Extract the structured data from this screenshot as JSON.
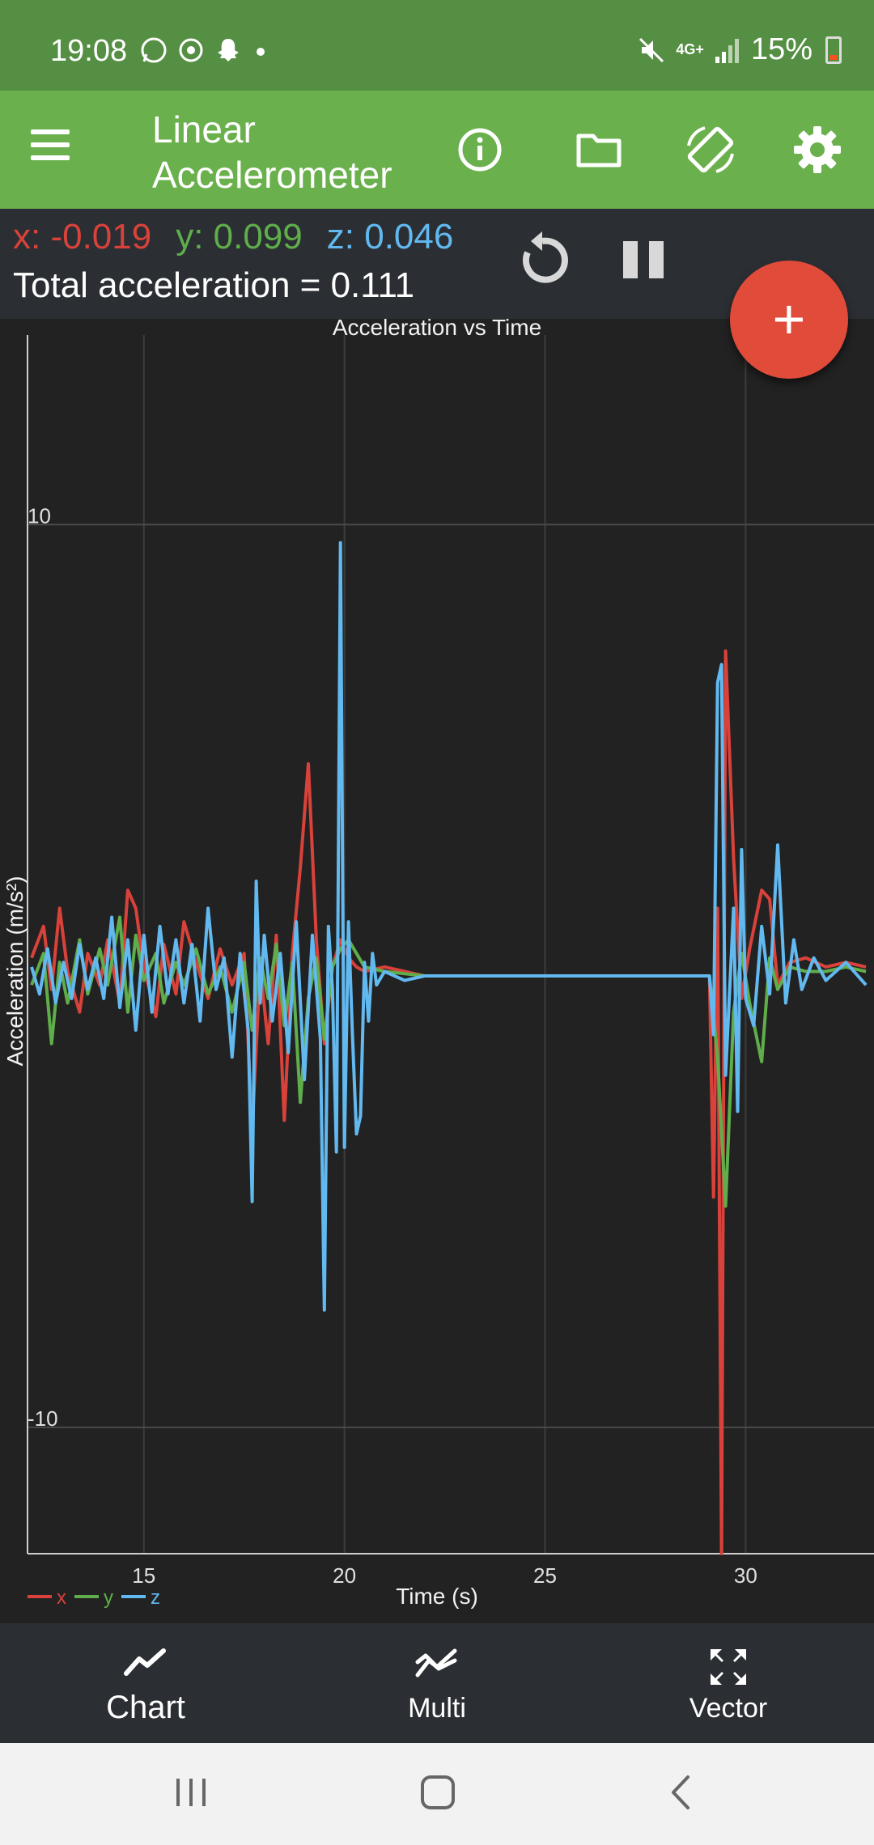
{
  "status_bar": {
    "time": "19:08",
    "battery": "15%",
    "network": "4G+"
  },
  "app_bar": {
    "title": "Linear Accelerometer",
    "icons": [
      "menu-icon",
      "info-icon",
      "folder-icon",
      "screen-rotation-icon",
      "settings-icon"
    ]
  },
  "readout": {
    "x_label": "x: -0.019",
    "y_label": "y: 0.099",
    "z_label": "z: 0.046",
    "total_label": "Total acceleration = 0.111"
  },
  "fab": {
    "label": "+"
  },
  "colors": {
    "x": "#d9423a",
    "y": "#5fae4b",
    "z": "#62b9f0",
    "appbar": "#6ab04c",
    "statusbar": "#558f43"
  },
  "chart_data": {
    "type": "line",
    "title": "Acceleration vs Time",
    "xlabel": "Time (s)",
    "ylabel": "Acceleration (m/s²)",
    "xlim": [
      12.1,
      33.2
    ],
    "ylim": [
      -12.8,
      14.2
    ],
    "xticks": [
      15,
      20,
      25,
      30
    ],
    "yticks": [
      10,
      -10
    ],
    "grid": true,
    "legend": "bottom-left",
    "series": [
      {
        "name": "x",
        "color": "#d9423a",
        "points": [
          [
            12.2,
            0.4
          ],
          [
            12.5,
            1.1
          ],
          [
            12.7,
            -0.3
          ],
          [
            12.9,
            1.5
          ],
          [
            13.1,
            0.1
          ],
          [
            13.4,
            -0.8
          ],
          [
            13.6,
            0.5
          ],
          [
            13.9,
            -0.2
          ],
          [
            14.1,
            0.8
          ],
          [
            14.4,
            -0.6
          ],
          [
            14.6,
            1.9
          ],
          [
            14.8,
            1.5
          ],
          [
            15.0,
            0.2
          ],
          [
            15.3,
            -0.9
          ],
          [
            15.5,
            0.7
          ],
          [
            15.8,
            -0.4
          ],
          [
            16.0,
            1.2
          ],
          [
            16.3,
            0.3
          ],
          [
            16.6,
            -0.5
          ],
          [
            16.9,
            0.6
          ],
          [
            17.2,
            -0.2
          ],
          [
            17.5,
            0.5
          ],
          [
            17.7,
            -3.4
          ],
          [
            17.9,
            0.2
          ],
          [
            18.1,
            -1.5
          ],
          [
            18.3,
            0.9
          ],
          [
            18.5,
            -3.2
          ],
          [
            18.7,
            0.5
          ],
          [
            18.9,
            2.4
          ],
          [
            19.1,
            4.7
          ],
          [
            19.3,
            0.8
          ],
          [
            19.5,
            -1.5
          ],
          [
            19.7,
            0.2
          ],
          [
            19.9,
            0.8
          ],
          [
            20.1,
            0.4
          ],
          [
            20.3,
            0.2
          ],
          [
            20.5,
            0.1
          ],
          [
            21.0,
            0.2
          ],
          [
            21.5,
            0.1
          ],
          [
            22,
            0
          ],
          [
            25,
            0
          ],
          [
            28,
            0
          ],
          [
            29.1,
            0
          ],
          [
            29.2,
            -4.9
          ],
          [
            29.3,
            1.5
          ],
          [
            29.4,
            -12.8
          ],
          [
            29.5,
            7.2
          ],
          [
            29.7,
            2.6
          ],
          [
            29.9,
            -0.5
          ],
          [
            30.1,
            0.6
          ],
          [
            30.4,
            1.9
          ],
          [
            30.6,
            1.7
          ],
          [
            30.8,
            -0.2
          ],
          [
            31.1,
            0.3
          ],
          [
            31.5,
            0.4
          ],
          [
            32.0,
            0.2
          ],
          [
            32.5,
            0.3
          ],
          [
            33.0,
            0.2
          ]
        ]
      },
      {
        "name": "y",
        "color": "#5fae4b",
        "points": [
          [
            12.2,
            -0.2
          ],
          [
            12.5,
            0.5
          ],
          [
            12.7,
            -1.5
          ],
          [
            12.9,
            0.3
          ],
          [
            13.1,
            -0.6
          ],
          [
            13.4,
            0.8
          ],
          [
            13.6,
            -0.4
          ],
          [
            13.9,
            0.6
          ],
          [
            14.1,
            -0.2
          ],
          [
            14.4,
            1.3
          ],
          [
            14.6,
            -0.8
          ],
          [
            14.8,
            0.9
          ],
          [
            15.0,
            -0.1
          ],
          [
            15.3,
            0.5
          ],
          [
            15.5,
            -0.6
          ],
          [
            15.8,
            0.3
          ],
          [
            16.0,
            -0.2
          ],
          [
            16.3,
            0.6
          ],
          [
            16.6,
            -0.4
          ],
          [
            16.9,
            0.2
          ],
          [
            17.2,
            -0.8
          ],
          [
            17.5,
            0.3
          ],
          [
            17.7,
            -1.2
          ],
          [
            17.9,
            0.4
          ],
          [
            18.1,
            -0.5
          ],
          [
            18.3,
            0.7
          ],
          [
            18.5,
            -1.1
          ],
          [
            18.7,
            0.3
          ],
          [
            18.9,
            -2.8
          ],
          [
            19.1,
            -0.5
          ],
          [
            19.3,
            0.4
          ],
          [
            19.5,
            -1.4
          ],
          [
            19.7,
            0.2
          ],
          [
            19.9,
            0.6
          ],
          [
            20.1,
            0.8
          ],
          [
            20.3,
            0.5
          ],
          [
            20.5,
            0.2
          ],
          [
            21.0,
            0.1
          ],
          [
            22,
            0
          ],
          [
            25,
            0
          ],
          [
            28,
            0
          ],
          [
            29.1,
            0
          ],
          [
            29.3,
            -1.8
          ],
          [
            29.5,
            -5.1
          ],
          [
            29.7,
            -0.8
          ],
          [
            29.9,
            0.5
          ],
          [
            30.1,
            -0.6
          ],
          [
            30.4,
            -1.9
          ],
          [
            30.6,
            0.4
          ],
          [
            30.8,
            -0.3
          ],
          [
            31.1,
            0.2
          ],
          [
            31.5,
            0.1
          ],
          [
            32.0,
            0.1
          ],
          [
            32.5,
            0.2
          ],
          [
            33.0,
            0.1
          ]
        ]
      },
      {
        "name": "z",
        "color": "#62b9f0",
        "points": [
          [
            12.2,
            0.2
          ],
          [
            12.4,
            -0.4
          ],
          [
            12.6,
            0.6
          ],
          [
            12.8,
            -0.6
          ],
          [
            13.0,
            0.3
          ],
          [
            13.2,
            -0.5
          ],
          [
            13.4,
            0.7
          ],
          [
            13.6,
            -0.3
          ],
          [
            13.8,
            0.4
          ],
          [
            14.0,
            -0.5
          ],
          [
            14.2,
            1.3
          ],
          [
            14.4,
            -0.7
          ],
          [
            14.6,
            0.8
          ],
          [
            14.8,
            -1.2
          ],
          [
            15.0,
            0.9
          ],
          [
            15.2,
            -0.8
          ],
          [
            15.4,
            1.1
          ],
          [
            15.6,
            -0.4
          ],
          [
            15.8,
            0.8
          ],
          [
            16.0,
            -0.6
          ],
          [
            16.2,
            0.7
          ],
          [
            16.4,
            -1.0
          ],
          [
            16.6,
            1.5
          ],
          [
            16.8,
            -0.3
          ],
          [
            17.0,
            0.4
          ],
          [
            17.2,
            -1.8
          ],
          [
            17.4,
            0.5
          ],
          [
            17.6,
            -1.2
          ],
          [
            17.7,
            -5.0
          ],
          [
            17.8,
            2.1
          ],
          [
            17.9,
            -0.6
          ],
          [
            18.0,
            0.9
          ],
          [
            18.2,
            -1.0
          ],
          [
            18.4,
            0.5
          ],
          [
            18.6,
            -1.7
          ],
          [
            18.8,
            1.2
          ],
          [
            19.0,
            -2.3
          ],
          [
            19.2,
            0.9
          ],
          [
            19.4,
            -1.4
          ],
          [
            19.5,
            -7.4
          ],
          [
            19.6,
            1.1
          ],
          [
            19.7,
            -0.3
          ],
          [
            19.8,
            -3.9
          ],
          [
            19.9,
            9.6
          ],
          [
            20.0,
            -3.8
          ],
          [
            20.1,
            1.2
          ],
          [
            20.2,
            -1.3
          ],
          [
            20.3,
            -3.5
          ],
          [
            20.4,
            -3.1
          ],
          [
            20.5,
            0.3
          ],
          [
            20.6,
            -1.0
          ],
          [
            20.7,
            0.5
          ],
          [
            20.8,
            -0.2
          ],
          [
            21.0,
            0.1
          ],
          [
            21.5,
            -0.1
          ],
          [
            22,
            0
          ],
          [
            25,
            0
          ],
          [
            28,
            0
          ],
          [
            29.1,
            0
          ],
          [
            29.2,
            -1.3
          ],
          [
            29.3,
            6.5
          ],
          [
            29.4,
            6.9
          ],
          [
            29.5,
            -2.2
          ],
          [
            29.7,
            1.5
          ],
          [
            29.8,
            -3.0
          ],
          [
            29.9,
            2.8
          ],
          [
            30.0,
            -0.5
          ],
          [
            30.2,
            -1.1
          ],
          [
            30.4,
            1.1
          ],
          [
            30.6,
            -0.4
          ],
          [
            30.8,
            2.9
          ],
          [
            31.0,
            -0.6
          ],
          [
            31.2,
            0.8
          ],
          [
            31.4,
            -0.3
          ],
          [
            31.7,
            0.4
          ],
          [
            32.0,
            -0.1
          ],
          [
            32.5,
            0.3
          ],
          [
            33.0,
            -0.2
          ]
        ]
      }
    ]
  },
  "bottom_nav": {
    "items": [
      {
        "label": "Chart",
        "icon": "line-chart-icon"
      },
      {
        "label": "Multi",
        "icon": "multi-line-icon"
      },
      {
        "label": "Vector",
        "icon": "expand-arrows-icon"
      }
    ]
  },
  "system_nav": {
    "icons": [
      "recents-icon",
      "home-icon",
      "back-icon"
    ]
  }
}
